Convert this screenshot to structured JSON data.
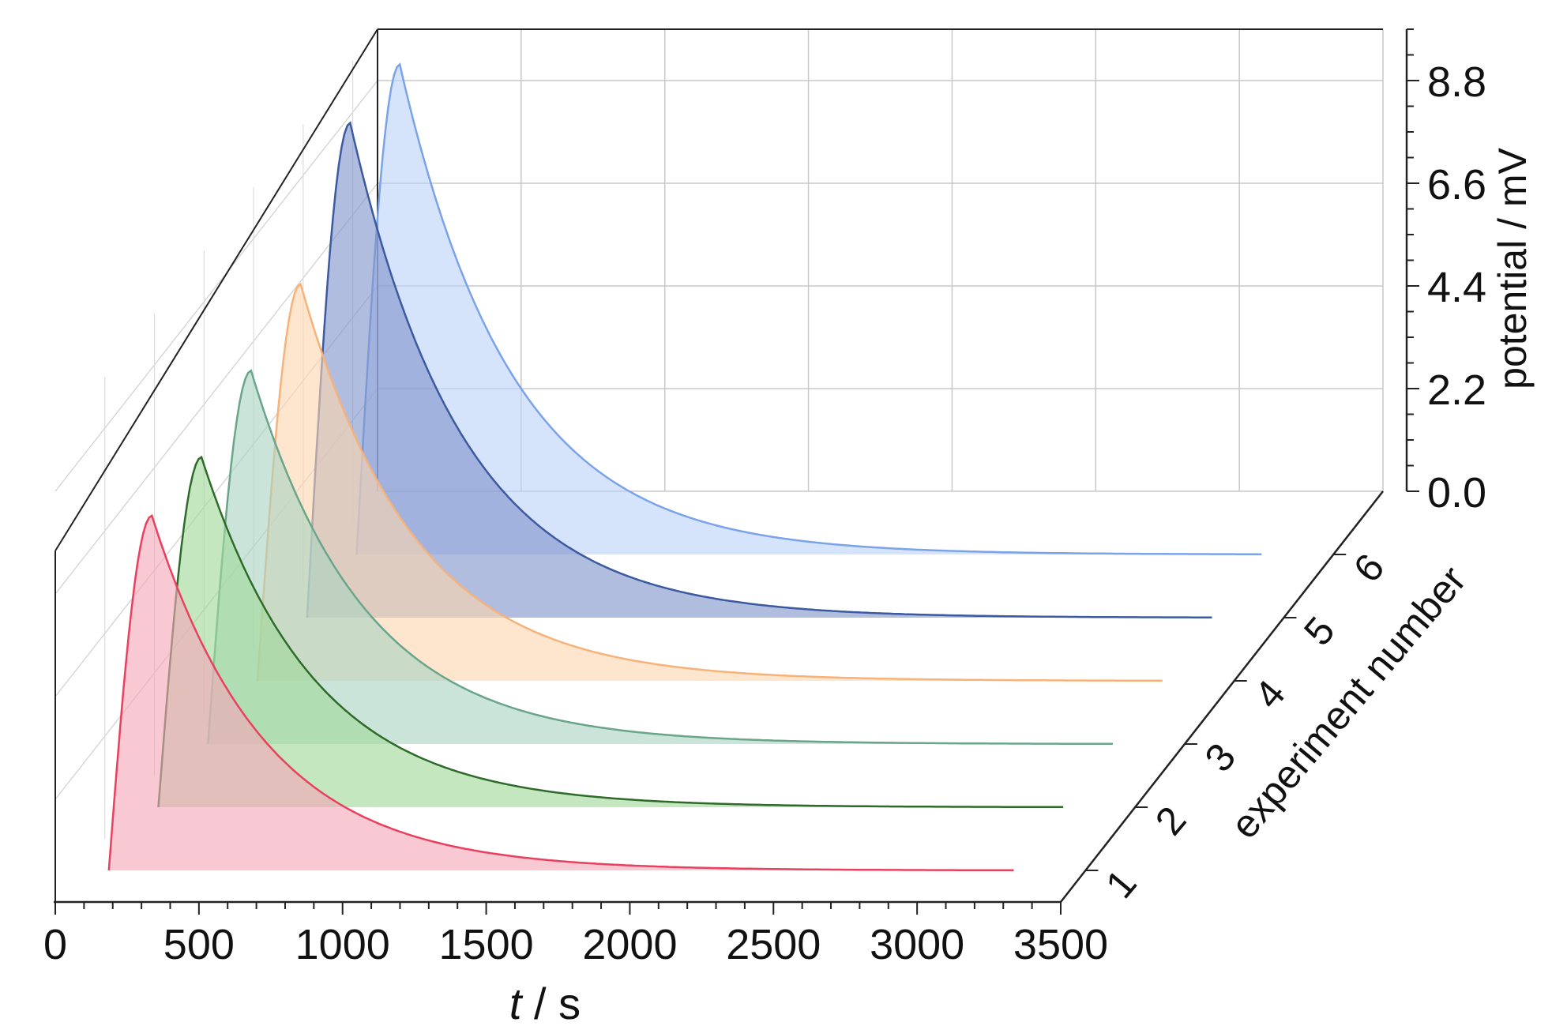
{
  "chart_data": {
    "type": "area",
    "projection": "3d-waterfall",
    "title": "",
    "xlabel_italic": "t",
    "xlabel_rest": " / s",
    "ylabel": "experiment number",
    "zlabel": "potential / mV",
    "xlim": [
      0,
      3500
    ],
    "zlim": [
      0,
      9.9
    ],
    "x_ticks": [
      "0",
      "500",
      "1000",
      "1500",
      "2000",
      "2500",
      "3000",
      "3500"
    ],
    "x_tick_values": [
      0,
      500,
      1000,
      1500,
      2000,
      2500,
      3000,
      3500
    ],
    "y_ticks": [
      "1",
      "2",
      "3",
      "4",
      "5",
      "6"
    ],
    "z_ticks": [
      "0.0",
      "2.2",
      "4.4",
      "6.6",
      "8.8"
    ],
    "z_tick_values": [
      0.0,
      2.2,
      4.4,
      6.6,
      8.8
    ],
    "grid": true,
    "series": [
      {
        "experiment": 1,
        "color": "#e8405e",
        "fill": "#f4a6b8",
        "t_start": 100,
        "t_peak": 250,
        "peak_mV": 7.6,
        "t_end": 3250
      },
      {
        "experiment": 2,
        "color": "#2e6b2a",
        "fill": "#9fd99a",
        "t_start": 100,
        "t_peak": 250,
        "peak_mV": 7.5,
        "t_end": 3250
      },
      {
        "experiment": 3,
        "color": "#6aa58a",
        "fill": "#a9d3c2",
        "t_start": 100,
        "t_peak": 250,
        "peak_mV": 8.0,
        "t_end": 3250
      },
      {
        "experiment": 4,
        "color": "#f7b27a",
        "fill": "#fbd5b0",
        "t_start": 100,
        "t_peak": 250,
        "peak_mV": 8.5,
        "t_end": 3250
      },
      {
        "experiment": 5,
        "color": "#3c5aa0",
        "fill": "#7f95c9",
        "t_start": 100,
        "t_peak": 250,
        "peak_mV": 10.6,
        "t_end": 3250
      },
      {
        "experiment": 6,
        "color": "#7ba3ea",
        "fill": "#bcd2f8",
        "t_start": 100,
        "t_peak": 250,
        "peak_mV": 10.5,
        "t_end": 3250
      }
    ]
  }
}
